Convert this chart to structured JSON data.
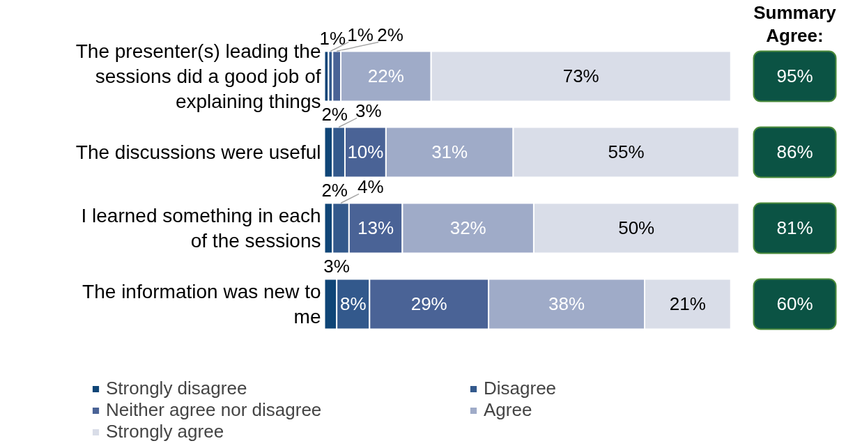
{
  "chart_data": {
    "type": "bar",
    "orientation": "horizontal",
    "stacked": true,
    "tick_labels": "y",
    "legend": "bottom",
    "grid": false,
    "categories": [
      "The presenter(s) leading the sessions did a good job of explaining things",
      "The discussions were useful",
      "I learned something in each of the sessions",
      "The information was new to me"
    ],
    "series": [
      {
        "name": "Strongly disagree",
        "color": "#0f4577",
        "values": [
          1,
          2,
          2,
          3
        ],
        "value_labels": [
          "1%",
          "2%",
          "2%",
          "3%"
        ]
      },
      {
        "name": "Disagree",
        "color": "#33598c",
        "values": [
          1,
          3,
          4,
          8
        ],
        "value_labels": [
          "1%",
          "3%",
          "4%",
          "8%"
        ]
      },
      {
        "name": "Neither agree nor disagree",
        "color": "#4a6396",
        "values": [
          2,
          10,
          13,
          29
        ],
        "value_labels": [
          "2%",
          "10%",
          "13%",
          "29%"
        ]
      },
      {
        "name": "Agree",
        "color": "#9fabc8",
        "values": [
          22,
          31,
          32,
          38
        ],
        "value_labels": [
          "22%",
          "31%",
          "32%",
          "38%"
        ]
      },
      {
        "name": "Strongly agree",
        "color": "#d9dde8",
        "values": [
          73,
          55,
          50,
          21
        ],
        "value_labels": [
          "73%",
          "55%",
          "50%",
          "21%"
        ]
      }
    ],
    "annotations": [
      "Summary Agree:",
      "95%",
      "86%",
      "81%",
      "60%"
    ]
  }
}
